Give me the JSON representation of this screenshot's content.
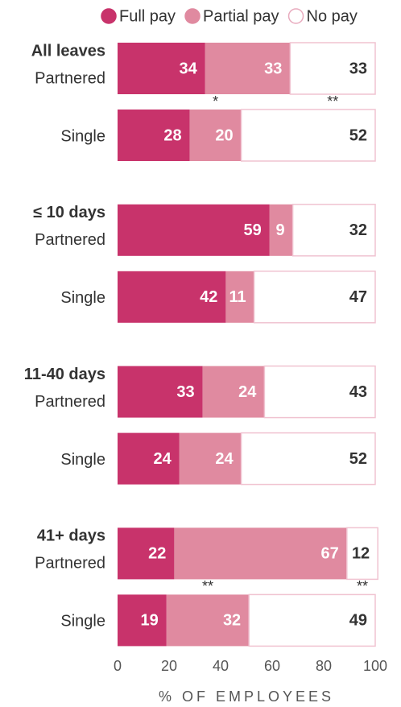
{
  "chart_data": {
    "type": "bar",
    "orientation": "horizontal",
    "stacked": true,
    "groups": [
      "All leaves",
      "≤ 10 days",
      "11-40 days",
      "41+ days"
    ],
    "categories": [
      "Partnered",
      "Single",
      "Partnered",
      "Single",
      "Partnered",
      "Single",
      "Partnered",
      "Single"
    ],
    "series": [
      {
        "name": "Full pay",
        "color": "#c8336b",
        "values": [
          34,
          28,
          59,
          42,
          33,
          24,
          22,
          19
        ]
      },
      {
        "name": "Partial pay",
        "color": "#e08aa0",
        "values": [
          33,
          20,
          9,
          11,
          24,
          24,
          67,
          32
        ]
      },
      {
        "name": "No pay",
        "color": "#ffffff",
        "values": [
          33,
          52,
          32,
          47,
          43,
          52,
          12,
          49
        ]
      }
    ],
    "annotations": [
      {
        "text": "*",
        "row": 1,
        "series": 1
      },
      {
        "text": "**",
        "row": 0,
        "series": 2
      },
      {
        "text": "**",
        "row": 7,
        "series": 1
      },
      {
        "text": "**",
        "row": 6,
        "series": 2
      }
    ],
    "xlim": [
      0,
      100
    ],
    "xticks": [
      0,
      20,
      40,
      60,
      80,
      100
    ],
    "xlabel": "% OF EMPLOYEES",
    "legend": "top"
  }
}
